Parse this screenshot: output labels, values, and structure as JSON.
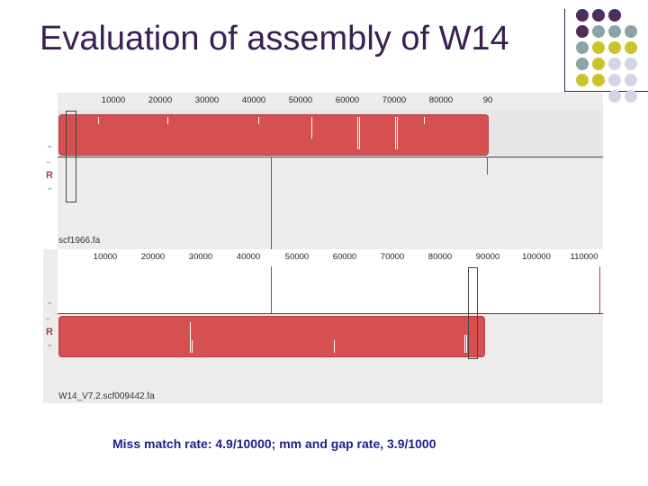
{
  "slide": {
    "title": "Evaluation of assembly of W14",
    "caption": "Miss match rate: 4.9/10000; mm and gap rate, 3.9/1000"
  },
  "colors": {
    "title": "#3a1f52",
    "caption": "#1e1e8e",
    "alignment_bar": "#d64f51",
    "dot_purple": "#4f2d5c",
    "dot_teal": "#8ea3a5",
    "dot_olive": "#c8c42a",
    "dot_lavender": "#d6d4e4"
  },
  "viewer": {
    "top_track": {
      "ruler_ticks": [
        "10000",
        "20000",
        "30000",
        "40000",
        "50000",
        "60000",
        "70000",
        "80000",
        "90"
      ],
      "sidebar_label": "R",
      "track_name": "scf1966.fa"
    },
    "bottom_track": {
      "ruler_ticks": [
        "10000",
        "20000",
        "30000",
        "40000",
        "50000",
        "60000",
        "70000",
        "80000",
        "90000",
        "100000",
        "110000"
      ],
      "sidebar_label": "R",
      "track_name": "W14_V7.2.scf009442.fa"
    }
  }
}
